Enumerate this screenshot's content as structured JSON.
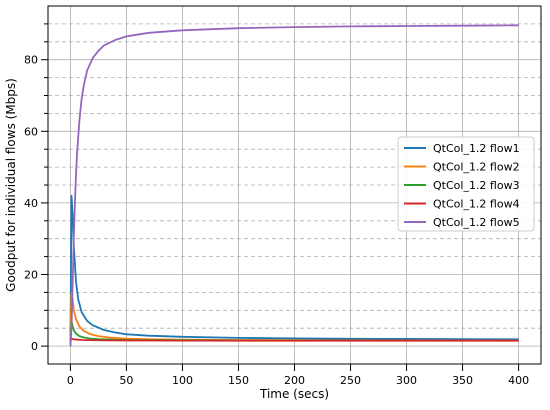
{
  "chart_data": {
    "type": "line",
    "title": "",
    "xlabel": "Time (secs)",
    "ylabel": "Goodput for individual flows (Mbps)",
    "xlim": [
      -20,
      420
    ],
    "ylim": [
      -5,
      95
    ],
    "x_ticks": [
      0,
      50,
      100,
      150,
      200,
      250,
      300,
      350,
      400
    ],
    "y_ticks": [
      0,
      20,
      40,
      60,
      80
    ],
    "y_minor_ticks": [
      5,
      10,
      15,
      25,
      30,
      35,
      45,
      50,
      55,
      65,
      70,
      75,
      85,
      90
    ],
    "grid": true,
    "legend_position": "center-right",
    "series": [
      {
        "name": "QtCol_1.2 flow1",
        "color": "#1f77b4",
        "x": [
          0,
          1,
          2,
          3,
          5,
          7,
          10,
          15,
          20,
          30,
          40,
          50,
          70,
          100,
          150,
          200,
          250,
          300,
          350,
          400
        ],
        "y": [
          0,
          42,
          36,
          28,
          18,
          13,
          9.5,
          7,
          5.8,
          4.5,
          3.8,
          3.3,
          2.9,
          2.6,
          2.3,
          2.15,
          2.05,
          2.0,
          1.95,
          1.9
        ]
      },
      {
        "name": "QtCol_1.2 flow2",
        "color": "#ff7f0e",
        "x": [
          0,
          1,
          2,
          3,
          5,
          8,
          12,
          18,
          25,
          35,
          50,
          70,
          100,
          150,
          200,
          250,
          300,
          350,
          400
        ],
        "y": [
          0,
          15,
          13,
          10,
          7.5,
          5.5,
          4.2,
          3.3,
          2.8,
          2.4,
          2.1,
          1.9,
          1.8,
          1.7,
          1.65,
          1.6,
          1.6,
          1.55,
          1.55
        ]
      },
      {
        "name": "QtCol_1.2 flow3",
        "color": "#2ca02c",
        "x": [
          0,
          1,
          2,
          3,
          5,
          8,
          12,
          18,
          25,
          40,
          60,
          100,
          150,
          200,
          250,
          300,
          350,
          400
        ],
        "y": [
          0,
          7,
          5.5,
          4.5,
          3.5,
          2.8,
          2.4,
          2.1,
          1.95,
          1.8,
          1.7,
          1.65,
          1.6,
          1.6,
          1.55,
          1.55,
          1.55,
          1.55
        ]
      },
      {
        "name": "QtCol_1.2 flow4",
        "color": "#d62728",
        "x": [
          0,
          1,
          3,
          10,
          30,
          100,
          200,
          300,
          400
        ],
        "y": [
          1.5,
          2.0,
          1.9,
          1.7,
          1.6,
          1.55,
          1.5,
          1.5,
          1.5
        ]
      },
      {
        "name": "QtCol_1.2 flow5",
        "color": "#9467bd",
        "x": [
          0,
          1,
          2,
          3,
          4,
          5,
          6,
          8,
          10,
          12,
          15,
          20,
          25,
          30,
          40,
          50,
          70,
          100,
          150,
          200,
          250,
          300,
          350,
          400
        ],
        "y": [
          0,
          5,
          18,
          30,
          40,
          48,
          54,
          63,
          69,
          73,
          77,
          80.5,
          82.5,
          84,
          85.5,
          86.5,
          87.5,
          88.2,
          88.8,
          89.1,
          89.3,
          89.4,
          89.5,
          89.6
        ]
      }
    ]
  }
}
